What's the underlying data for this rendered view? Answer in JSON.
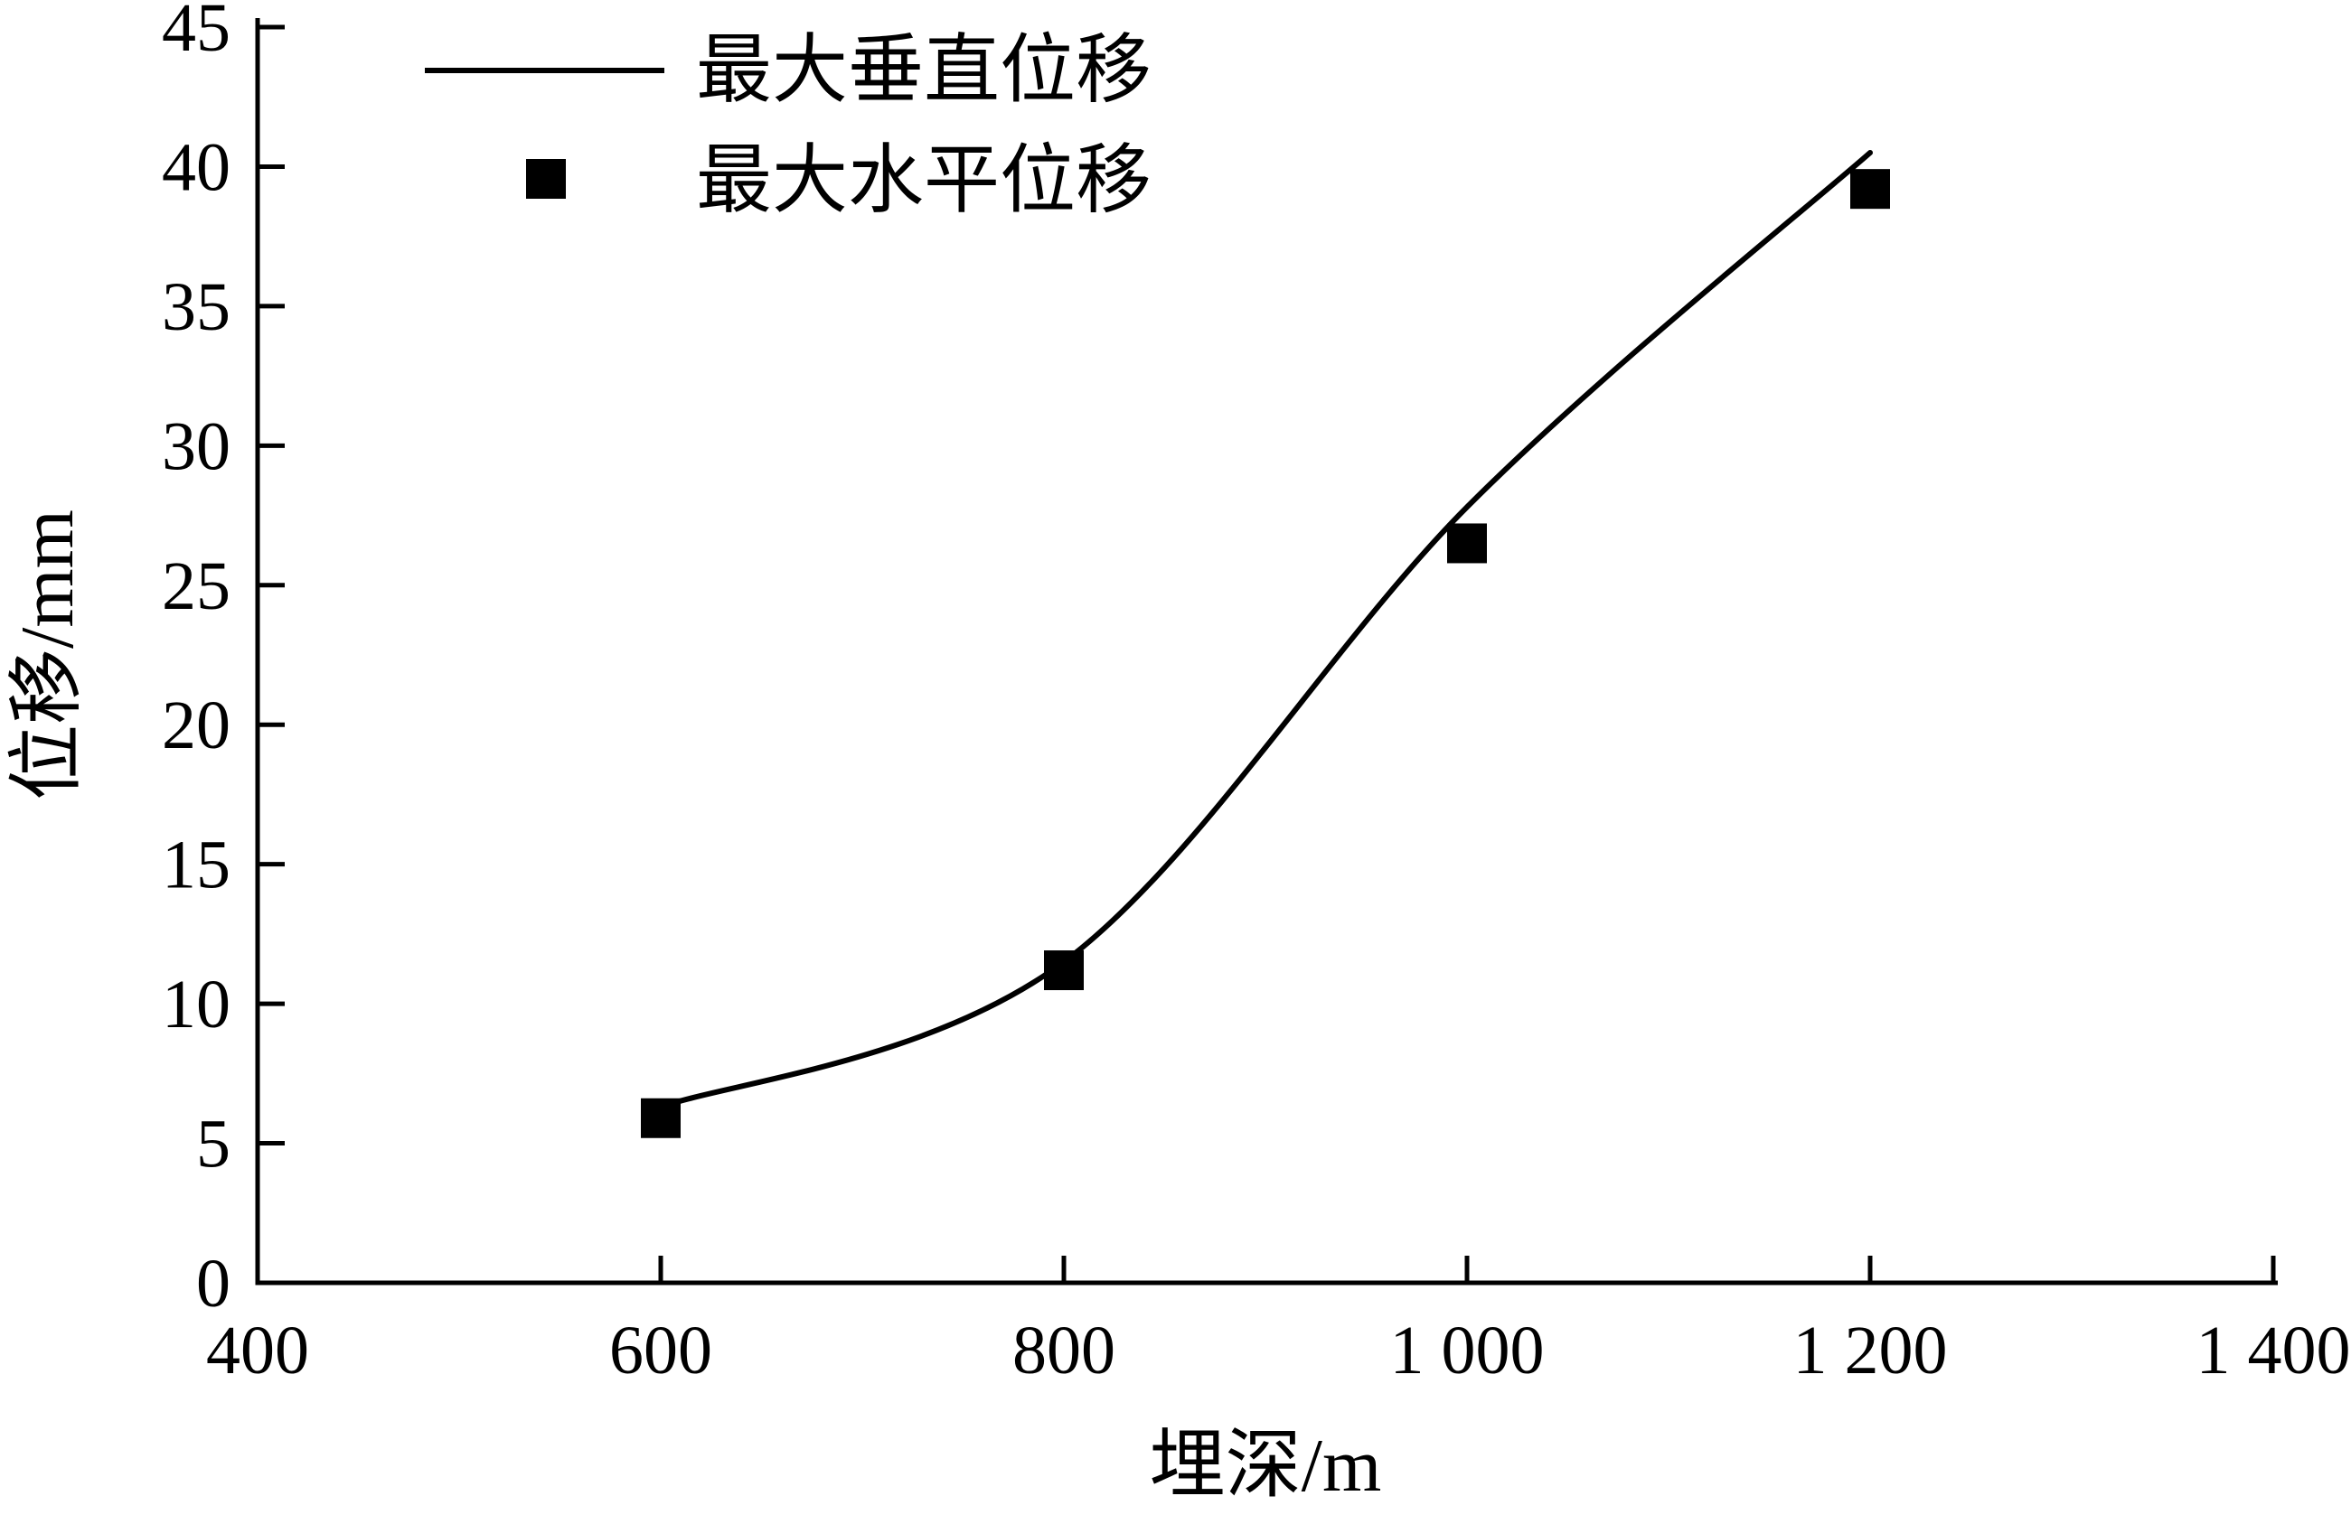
{
  "figure": {
    "background": "#ffffff"
  },
  "chart_data": {
    "type": "line",
    "x": [
      600,
      800,
      1000,
      1200
    ],
    "series": [
      {
        "name": "最大垂直位移",
        "kind": "line",
        "values": [
          6.3,
          11.5,
          27.8,
          40.5
        ]
      },
      {
        "name": "最大水平位移",
        "kind": "scatter",
        "marker": "square",
        "values": [
          5.9,
          11.2,
          26.5,
          39.2
        ]
      }
    ],
    "title": "",
    "xlabel": "埋深/m",
    "ylabel": "位移/mm",
    "xlim": [
      400,
      1400
    ],
    "ylim": [
      0,
      45
    ],
    "x_ticks": [
      400,
      600,
      800,
      1000,
      1200,
      1400
    ],
    "x_tick_labels": [
      "400",
      "600",
      "800",
      "1 000",
      "1 200",
      "1 400"
    ],
    "y_ticks": [
      0,
      5,
      10,
      15,
      20,
      25,
      30,
      35,
      40,
      45
    ],
    "y_tick_labels": [
      "0",
      "5",
      "10",
      "15",
      "20",
      "25",
      "30",
      "35",
      "40",
      "45"
    ],
    "grid": false,
    "legend_position": "top-left",
    "colors": {
      "line": "#000000",
      "marker": "#000000",
      "axis": "#000000",
      "text": "#000000",
      "background": "#ffffff"
    }
  }
}
